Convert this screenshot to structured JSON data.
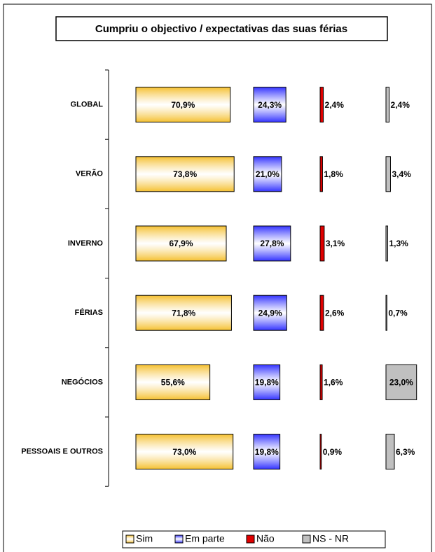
{
  "chart_data": {
    "type": "bar",
    "orientation": "horizontal",
    "layout": "panels",
    "title": "Cumpriu o objectivo / expectativas das suas férias",
    "categories": [
      "GLOBAL",
      "VERÃO",
      "INVERNO",
      "FÉRIAS",
      "NEGÓCIOS",
      "PESSOAIS E OUTROS"
    ],
    "series": [
      {
        "name": "Sim",
        "color": "#f5c030",
        "values": [
          70.9,
          73.8,
          67.9,
          71.8,
          55.6,
          73.0
        ],
        "value_labels": [
          "70,9%",
          "73,8%",
          "67,9%",
          "71,8%",
          "55,6%",
          "73,0%"
        ]
      },
      {
        "name": "Em parte",
        "color": "#3333ff",
        "values": [
          24.3,
          21.0,
          27.8,
          24.9,
          19.8,
          19.8
        ],
        "value_labels": [
          "24,3%",
          "21,0%",
          "27,8%",
          "24,9%",
          "19,8%",
          "19,8%"
        ]
      },
      {
        "name": "Não",
        "color": "#e00000",
        "values": [
          2.4,
          1.8,
          3.1,
          2.6,
          1.6,
          0.9
        ],
        "value_labels": [
          "2,4%",
          "1,8%",
          "3,1%",
          "2,6%",
          "1,6%",
          "0,9%"
        ]
      },
      {
        "name": "NS - NR",
        "color": "#c0c0c0",
        "values": [
          2.4,
          3.4,
          1.3,
          0.7,
          23.0,
          6.3
        ],
        "value_labels": [
          "2,4%",
          "3,4%",
          "1,3%",
          "0,7%",
          "23,0%",
          "6,3%"
        ]
      }
    ],
    "legend": "bottom"
  }
}
